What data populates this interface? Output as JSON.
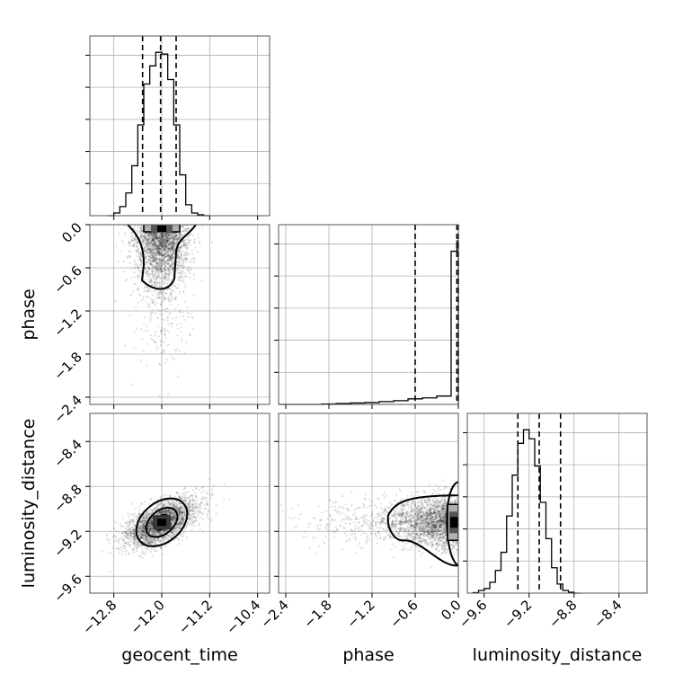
{
  "chart_data": {
    "type": "corner",
    "parameters": [
      "geocent_time",
      "phase",
      "luminosity_distance"
    ],
    "xlabels": [
      "geocent_time",
      "phase",
      "luminosity_distance"
    ],
    "ylabels": [
      "",
      "phase",
      "luminosity_distance"
    ],
    "ranges": [
      [
        -13.2,
        -10.2
      ],
      [
        -2.5,
        0.0
      ],
      [
        -9.75,
        -8.15
      ]
    ],
    "ticks": {
      "geocent_time": [
        "−12.8",
        "−12.0",
        "−11.2",
        "−10.4"
      ],
      "geocent_time_values": [
        -12.8,
        -12.0,
        -11.2,
        -10.4
      ],
      "phase": [
        "−2.4",
        "−1.8",
        "−1.2",
        "−0.6",
        "0.0"
      ],
      "phase_values": [
        -2.4,
        -1.8,
        -1.2,
        -0.6,
        0.0
      ],
      "luminosity_distance": [
        "−9.6",
        "−9.2",
        "−8.8",
        "−8.4"
      ],
      "luminosity_distance_values": [
        -9.6,
        -9.2,
        -8.8,
        -8.4
      ]
    },
    "marginals": [
      {
        "parameter": "geocent_time",
        "edges": [
          -12.9,
          -12.8,
          -12.7,
          -12.6,
          -12.5,
          -12.4,
          -12.3,
          -12.2,
          -12.1,
          -12.0,
          -11.9,
          -11.8,
          -11.7,
          -11.6,
          -11.5,
          -11.4,
          -11.3,
          -11.2
        ],
        "counts": [
          0,
          3,
          10,
          25,
          55,
          100,
          145,
          165,
          180,
          178,
          150,
          100,
          45,
          12,
          3,
          1,
          0
        ],
        "quantiles": [
          -12.32,
          -12.02,
          -11.76
        ]
      },
      {
        "parameter": "phase",
        "edges": [
          -2.5,
          -2.3,
          -2.1,
          -1.9,
          -1.7,
          -1.5,
          -1.3,
          -1.1,
          -0.9,
          -0.7,
          -0.5,
          -0.3,
          -0.1,
          -0.02,
          0.0
        ],
        "counts": [
          0,
          0,
          0,
          0.5,
          1,
          1.5,
          2,
          3,
          4,
          6,
          7,
          9,
          165,
          176
        ],
        "quantiles": [
          -0.6,
          -0.02,
          0.0
        ]
      },
      {
        "parameter": "luminosity_distance",
        "edges": [
          -9.7,
          -9.65,
          -9.6,
          -9.55,
          -9.5,
          -9.45,
          -9.4,
          -9.35,
          -9.3,
          -9.25,
          -9.2,
          -9.15,
          -9.1,
          -9.05,
          -9.0,
          -8.95,
          -8.9,
          -8.85,
          -8.8,
          -8.75
        ],
        "counts": [
          0.5,
          3,
          5,
          12,
          25,
          45,
          85,
          130,
          165,
          180,
          170,
          140,
          100,
          60,
          28,
          10,
          3,
          1,
          0
        ],
        "quantiles": [
          -9.3,
          -9.11,
          -8.92
        ]
      }
    ],
    "joint": [
      {
        "x": "geocent_time",
        "y": "phase",
        "peak": [
          -12.0,
          -0.02
        ],
        "sd": [
          0.22,
          0.4
        ]
      },
      {
        "x": "geocent_time",
        "y": "luminosity_distance",
        "peak": [
          -12.0,
          -9.12
        ],
        "sd": [
          0.3,
          0.11
        ],
        "correlation": 0.6
      },
      {
        "x": "phase",
        "y": "luminosity_distance",
        "peak": [
          -0.02,
          -9.12
        ],
        "sd": [
          0.45,
          0.11
        ]
      }
    ],
    "grid": true
  }
}
